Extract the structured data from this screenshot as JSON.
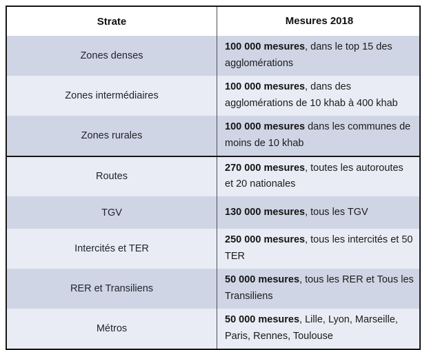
{
  "header": {
    "strate": "Strate",
    "mesures": "Mesures 2018"
  },
  "rows": [
    {
      "strate": "Zones denses",
      "mesures_bold": "100 000 mesures",
      "mesures_rest": ", dans le top 15 des agglomérations"
    },
    {
      "strate": "Zones intermédiaires",
      "mesures_bold": "100 000 mesures",
      "mesures_rest": ", dans des agglomérations de 10 khab à 400 khab"
    },
    {
      "strate": "Zones rurales",
      "mesures_bold": "100 000 mesures",
      "mesures_rest": " dans les communes de moins de 10 khab"
    },
    {
      "strate": "Routes",
      "mesures_bold": "270 000 mesures",
      "mesures_rest": ", toutes les autoroutes et 20 nationales"
    },
    {
      "strate": "TGV",
      "mesures_bold": "130 000 mesures",
      "mesures_rest": ", tous les TGV"
    },
    {
      "strate": "Intercités et TER",
      "mesures_bold": "250 000 mesures",
      "mesures_rest": ", tous les intercités et 50 TER"
    },
    {
      "strate": "RER et Transiliens",
      "mesures_bold": "50 000 mesures",
      "mesures_rest": ", tous les RER et Tous les Transiliens"
    },
    {
      "strate": "Métros",
      "mesures_bold": "50 000 mesures",
      "mesures_rest": ", Lille, Lyon, Marseille, Paris, Rennes, Toulouse"
    }
  ],
  "colors": {
    "row_shade_dark": "#cfd5e4",
    "row_shade_light": "#e9ecf4",
    "border": "#151515",
    "text": "#1b1b1b"
  }
}
